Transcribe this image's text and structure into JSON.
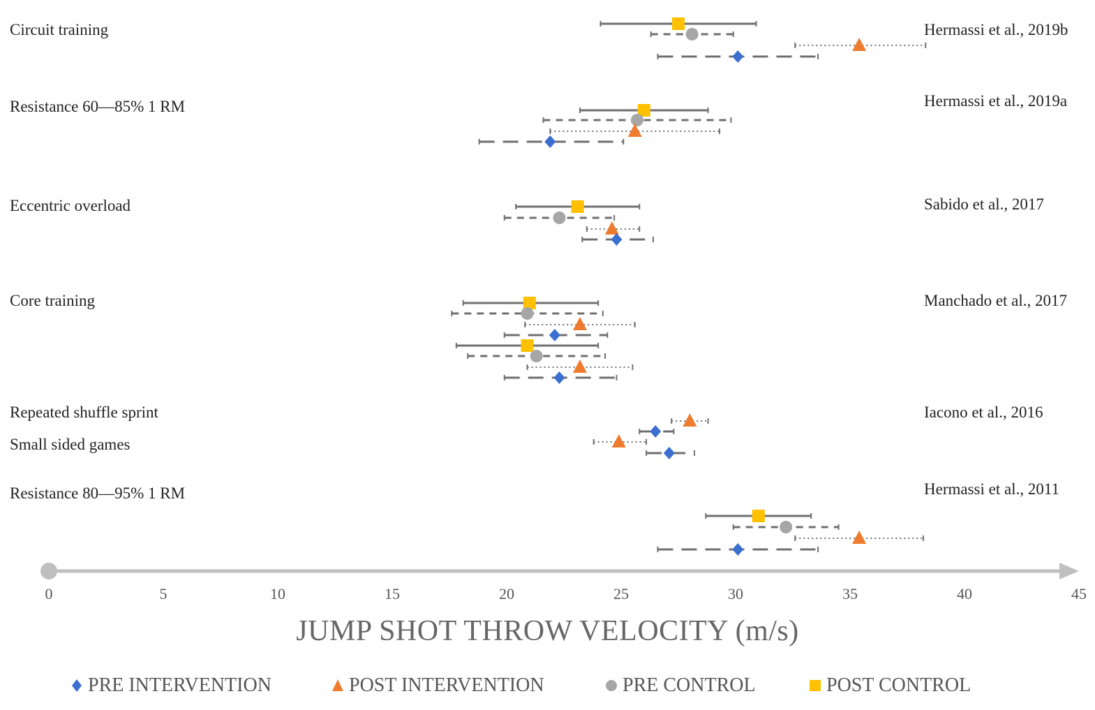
{
  "chart_data": {
    "type": "scatter",
    "title": "",
    "xlabel": "JUMP SHOT THROW VELOCITY (m/s)",
    "ylabel": "",
    "xlim": [
      0,
      45
    ],
    "xticks": [
      "0",
      "5",
      "10",
      "15",
      "20",
      "25",
      "30",
      "35",
      "40",
      "45"
    ],
    "grid": false,
    "legend_position": "bottom",
    "series_styles": {
      "pre_intervention": {
        "label": "PRE INTERVENTION",
        "color": "#3a6fd0",
        "marker": "diamond",
        "line": "longdash"
      },
      "post_intervention": {
        "label": "POST INTERVENTION",
        "color": "#ef7b2e",
        "marker": "triangle",
        "line": "dotted"
      },
      "pre_control": {
        "label": "PRE CONTROL",
        "color": "#a6a6a6",
        "marker": "circle",
        "line": "dashed"
      },
      "post_control": {
        "label": "POST CONTROL",
        "color": "#ffc000",
        "marker": "square",
        "line": "solid"
      }
    },
    "groups": [
      {
        "label": "Circuit training",
        "study": "Hermassi et al., 2019b",
        "points": [
          {
            "series": "post_control",
            "mean": 27.5,
            "low": 24.1,
            "high": 30.9
          },
          {
            "series": "pre_control",
            "mean": 28.1,
            "low": 26.3,
            "high": 29.9
          },
          {
            "series": "post_intervention",
            "mean": 35.4,
            "low": 32.6,
            "high": 38.3
          },
          {
            "series": "pre_intervention",
            "mean": 30.1,
            "low": 26.6,
            "high": 33.6
          }
        ]
      },
      {
        "label": "Resistance 60—85% 1 RM",
        "study": "Hermassi et al., 2019a",
        "points": [
          {
            "series": "post_control",
            "mean": 26.0,
            "low": 23.2,
            "high": 28.8
          },
          {
            "series": "pre_control",
            "mean": 25.7,
            "low": 21.6,
            "high": 29.8
          },
          {
            "series": "post_intervention",
            "mean": 25.6,
            "low": 21.9,
            "high": 29.3
          },
          {
            "series": "pre_intervention",
            "mean": 21.9,
            "low": 18.8,
            "high": 25.1
          }
        ]
      },
      {
        "label": "Eccentric overload",
        "study": "Sabido et al., 2017",
        "points": [
          {
            "series": "post_control",
            "mean": 23.1,
            "low": 20.4,
            "high": 25.8
          },
          {
            "series": "pre_control",
            "mean": 22.3,
            "low": 19.9,
            "high": 24.7
          },
          {
            "series": "post_intervention",
            "mean": 24.6,
            "low": 23.5,
            "high": 25.8
          },
          {
            "series": "pre_intervention",
            "mean": 24.8,
            "low": 23.3,
            "high": 26.4
          }
        ]
      },
      {
        "label": "Core training",
        "study": "Manchado et al., 2017",
        "points": [
          {
            "series": "post_control",
            "mean": 21.0,
            "low": 18.1,
            "high": 24.0
          },
          {
            "series": "pre_control",
            "mean": 20.9,
            "low": 17.6,
            "high": 24.2
          },
          {
            "series": "post_intervention",
            "mean": 23.2,
            "low": 20.8,
            "high": 25.6
          },
          {
            "series": "pre_intervention",
            "mean": 22.1,
            "low": 19.9,
            "high": 24.4
          },
          {
            "series": "post_control",
            "mean": 20.9,
            "low": 17.8,
            "high": 24.0
          },
          {
            "series": "pre_control",
            "mean": 21.3,
            "low": 18.3,
            "high": 24.3
          },
          {
            "series": "post_intervention",
            "mean": 23.2,
            "low": 20.9,
            "high": 25.5
          },
          {
            "series": "pre_intervention",
            "mean": 22.3,
            "low": 19.9,
            "high": 24.8
          }
        ]
      },
      {
        "label": "Repeated shuffle sprint",
        "study": "Iacono et al., 2016",
        "points": [
          {
            "series": "post_intervention",
            "mean": 28.0,
            "low": 27.2,
            "high": 28.8
          },
          {
            "series": "pre_intervention",
            "mean": 26.5,
            "low": 25.8,
            "high": 27.3
          }
        ]
      },
      {
        "label": "Small sided games",
        "study": "",
        "points": [
          {
            "series": "post_intervention",
            "mean": 24.9,
            "low": 23.8,
            "high": 26.1
          },
          {
            "series": "pre_intervention",
            "mean": 27.1,
            "low": 26.1,
            "high": 28.2
          }
        ]
      },
      {
        "label": "Resistance 80—95% 1 RM",
        "study": "Hermassi et al., 2011",
        "points": [
          {
            "series": "post_control",
            "mean": 31.0,
            "low": 28.7,
            "high": 33.3
          },
          {
            "series": "pre_control",
            "mean": 32.2,
            "low": 29.9,
            "high": 34.5
          },
          {
            "series": "post_intervention",
            "mean": 35.4,
            "low": 32.6,
            "high": 38.2
          },
          {
            "series": "pre_intervention",
            "mean": 30.1,
            "low": 26.6,
            "high": 33.6
          }
        ]
      }
    ]
  },
  "legend": [
    {
      "key": "pre_intervention",
      "label": "PRE INTERVENTION"
    },
    {
      "key": "post_intervention",
      "label": "POST INTERVENTION"
    },
    {
      "key": "pre_control",
      "label": "PRE CONTROL"
    },
    {
      "key": "post_control",
      "label": "POST CONTROL"
    }
  ]
}
